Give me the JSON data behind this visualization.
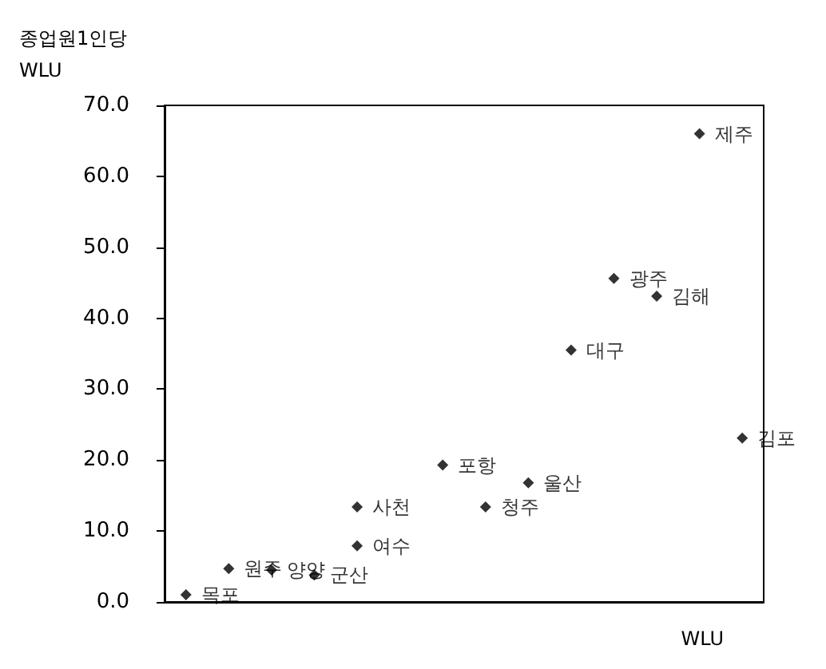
{
  "chart_data": {
    "type": "scatter",
    "ylabel": "종업원1인당\nWLU",
    "xlabel": "WLU",
    "categories": [
      null,
      null,
      null,
      null,
      null,
      null,
      null,
      null,
      null,
      null,
      null,
      null,
      null,
      null
    ],
    "series": [
      {
        "color": "#000000",
        "values": [
          1.0,
          4.7,
          4.5,
          3.8,
          7.9,
          null,
          19.3,
          13.4,
          16.8,
          35.5,
          45.6,
          43.1,
          66.0,
          23.1
        ],
        "value_labels": [
          "목포",
          "원주",
          "양양",
          "군산",
          "여수",
          null,
          "포항",
          "청주",
          "울산",
          "대구",
          "광주",
          "김해",
          "제주",
          "김포"
        ]
      },
      {
        "color": "#000000",
        "values": [
          null,
          null,
          null,
          null,
          13.4,
          null,
          null,
          null,
          null,
          null,
          null,
          null,
          null,
          null
        ],
        "value_labels": [
          null,
          null,
          null,
          null,
          "사천",
          null,
          null,
          null,
          null,
          null,
          null,
          null,
          null,
          null
        ]
      }
    ],
    "marker": "diamond",
    "grid": false,
    "tick_labels": "y",
    "ylim": [
      0,
      70
    ],
    "yticks": [
      {
        "value": 0,
        "label": "0.0"
      },
      {
        "value": 10,
        "label": "10.0"
      },
      {
        "value": 20,
        "label": "20.0"
      },
      {
        "value": 30,
        "label": "30.0"
      },
      {
        "value": 40,
        "label": "40.0"
      },
      {
        "value": 50,
        "label": "50.0"
      },
      {
        "value": 60,
        "label": "60.0"
      },
      {
        "value": 70,
        "label": "70.0"
      }
    ]
  }
}
